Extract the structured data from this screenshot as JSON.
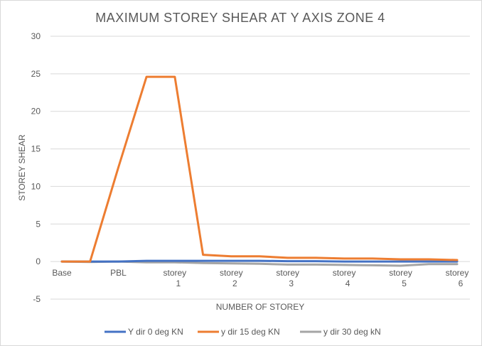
{
  "chart_data": {
    "type": "line",
    "title": "MAXIMUM STOREY SHEAR AT Y AXIS ZONE 4",
    "xlabel": "NUMBER OF STOREY",
    "ylabel": "STOREY SHEAR",
    "ylim": [
      -5,
      30
    ],
    "yticks": [
      -5,
      0,
      5,
      10,
      15,
      20,
      25,
      30
    ],
    "grid": true,
    "legend_position": "bottom",
    "x_tick_labels": [
      {
        "line1": "Base",
        "line2": ""
      },
      {
        "line1": "PBL",
        "line2": ""
      },
      {
        "line1": "storey",
        "line2": "1"
      },
      {
        "line1": "storey",
        "line2": "2"
      },
      {
        "line1": "storey",
        "line2": "3"
      },
      {
        "line1": "storey",
        "line2": "4"
      },
      {
        "line1": "storey",
        "line2": "5"
      },
      {
        "line1": "storey",
        "line2": "6"
      }
    ],
    "x": [
      0,
      0.5,
      1,
      1.5,
      2,
      2.5,
      3,
      3.5,
      4,
      4.5,
      5,
      5.5,
      6,
      6.5,
      7
    ],
    "series": [
      {
        "name": "Y dir 0 deg KN",
        "color": "#4472c4",
        "values": [
          0,
          0,
          0,
          0.1,
          0.1,
          0.1,
          0.1,
          0.1,
          0.05,
          0.05,
          0,
          0,
          0,
          0,
          0
        ]
      },
      {
        "name": "y dir 15 deg  KN",
        "color": "#ed7d31",
        "values": [
          0,
          0,
          12.5,
          24.6,
          24.6,
          0.9,
          0.7,
          0.7,
          0.5,
          0.5,
          0.4,
          0.4,
          0.3,
          0.3,
          0.2
        ]
      },
      {
        "name": "y dir 30 deg  kN",
        "color": "#a5a5a5",
        "values": [
          0,
          -0.05,
          0,
          -0.1,
          -0.1,
          -0.2,
          -0.25,
          -0.3,
          -0.4,
          -0.4,
          -0.45,
          -0.5,
          -0.55,
          -0.35,
          -0.35
        ]
      }
    ]
  }
}
